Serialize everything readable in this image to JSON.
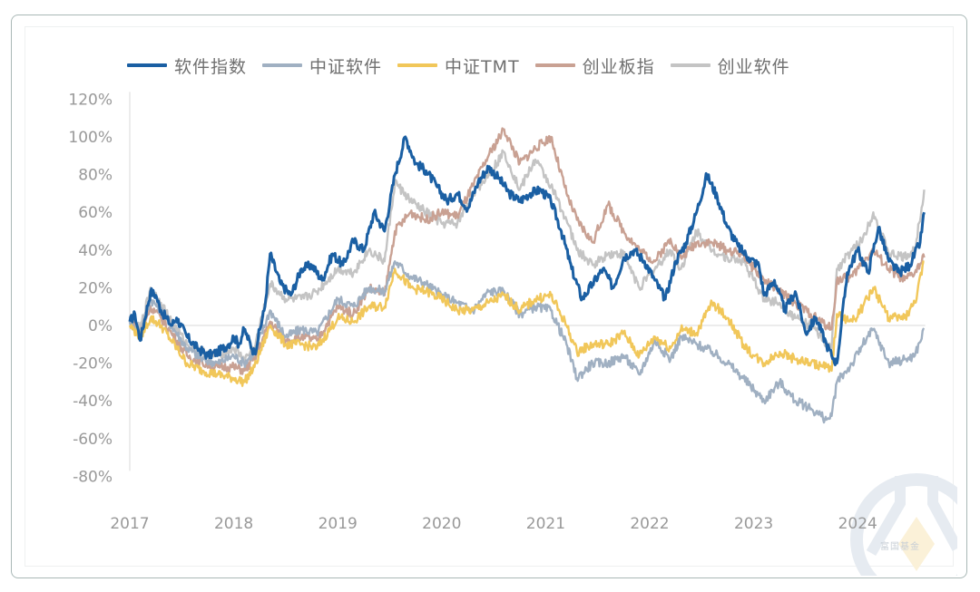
{
  "chart_data": {
    "type": "line",
    "title": "",
    "xlabel": "",
    "ylabel": "",
    "xlim": [
      2017.0,
      2024.65
    ],
    "ylim": [
      -80,
      120
    ],
    "y_ticks": [
      "120%",
      "100%",
      "80%",
      "60%",
      "40%",
      "20%",
      "0%",
      "-20%",
      "-40%",
      "-60%",
      "-80%"
    ],
    "y_tick_values": [
      120,
      100,
      80,
      60,
      40,
      20,
      0,
      -20,
      -40,
      -60,
      -80
    ],
    "x_ticks": [
      "2017",
      "2018",
      "2019",
      "2020",
      "2021",
      "2022",
      "2023",
      "2024"
    ],
    "x_tick_values": [
      2017,
      2018,
      2019,
      2020,
      2021,
      2022,
      2023,
      2024
    ],
    "grid": false,
    "zero_line": true,
    "legend_position": "top",
    "series": [
      {
        "name": "软件指数",
        "color": "#1a5fa3",
        "x": [
          2017.0,
          2017.05,
          2017.1,
          2017.2,
          2017.25,
          2017.3,
          2017.4,
          2017.45,
          2017.55,
          2017.65,
          2017.75,
          2017.85,
          2017.95,
          2018.0,
          2018.05,
          2018.1,
          2018.2,
          2018.3,
          2018.35,
          2018.45,
          2018.55,
          2018.65,
          2018.75,
          2018.85,
          2018.95,
          2019.05,
          2019.15,
          2019.25,
          2019.35,
          2019.45,
          2019.55,
          2019.65,
          2019.75,
          2019.85,
          2019.95,
          2020.05,
          2020.15,
          2020.25,
          2020.35,
          2020.45,
          2020.55,
          2020.65,
          2020.75,
          2020.85,
          2020.95,
          2021.05,
          2021.15,
          2021.25,
          2021.35,
          2021.45,
          2021.55,
          2021.65,
          2021.75,
          2021.85,
          2021.95,
          2022.05,
          2022.15,
          2022.25,
          2022.35,
          2022.45,
          2022.55,
          2022.65,
          2022.75,
          2022.85,
          2022.95,
          2023.05,
          2023.1,
          2023.2,
          2023.3,
          2023.4,
          2023.5,
          2023.6,
          2023.7,
          2023.75,
          2023.8,
          2023.9,
          2024.0,
          2024.1,
          2024.2,
          2024.3,
          2024.4,
          2024.5,
          2024.6,
          2024.64
        ],
        "y": [
          2,
          6,
          -8,
          18,
          16,
          8,
          0,
          4,
          -6,
          -12,
          -16,
          -14,
          -10,
          -6,
          -10,
          -2,
          -15,
          10,
          38,
          22,
          16,
          30,
          32,
          24,
          38,
          32,
          45,
          40,
          60,
          50,
          80,
          100,
          86,
          82,
          74,
          66,
          70,
          62,
          76,
          84,
          78,
          70,
          66,
          70,
          72,
          66,
          50,
          30,
          14,
          22,
          30,
          20,
          36,
          40,
          34,
          24,
          14,
          34,
          44,
          60,
          80,
          68,
          52,
          42,
          36,
          32,
          16,
          24,
          8,
          18,
          -4,
          4,
          -10,
          -16,
          -20,
          28,
          40,
          28,
          52,
          34,
          28,
          32,
          44,
          60
        ]
      },
      {
        "name": "中证软件",
        "color": "#a0b0c2",
        "x": [
          2017.0,
          2017.1,
          2017.2,
          2017.3,
          2017.4,
          2017.55,
          2017.7,
          2017.85,
          2018.0,
          2018.1,
          2018.2,
          2018.35,
          2018.5,
          2018.65,
          2018.8,
          2019.0,
          2019.15,
          2019.3,
          2019.45,
          2019.55,
          2019.7,
          2019.85,
          2020.0,
          2020.15,
          2020.3,
          2020.45,
          2020.6,
          2020.75,
          2020.9,
          2021.05,
          2021.2,
          2021.3,
          2021.45,
          2021.6,
          2021.75,
          2021.9,
          2022.05,
          2022.2,
          2022.3,
          2022.45,
          2022.6,
          2022.75,
          2022.9,
          2023.0,
          2023.1,
          2023.25,
          2023.4,
          2023.55,
          2023.7,
          2023.75,
          2023.8,
          2023.95,
          2024.05,
          2024.15,
          2024.3,
          2024.45,
          2024.55,
          2024.64
        ],
        "y": [
          2,
          -4,
          14,
          8,
          0,
          -12,
          -18,
          -20,
          -16,
          -20,
          -14,
          8,
          -6,
          -2,
          -4,
          14,
          10,
          20,
          18,
          34,
          26,
          22,
          16,
          12,
          8,
          18,
          18,
          6,
          10,
          8,
          -10,
          -28,
          -20,
          -20,
          -16,
          -26,
          -8,
          -18,
          -6,
          -10,
          -14,
          -20,
          -28,
          -34,
          -40,
          -30,
          -40,
          -44,
          -50,
          -48,
          -30,
          -20,
          -10,
          -2,
          -20,
          -18,
          -16,
          -2
        ]
      },
      {
        "name": "中证TMT",
        "color": "#f1c75a",
        "x": [
          2017.0,
          2017.1,
          2017.2,
          2017.3,
          2017.4,
          2017.55,
          2017.7,
          2017.85,
          2018.0,
          2018.1,
          2018.2,
          2018.35,
          2018.5,
          2018.65,
          2018.8,
          2019.0,
          2019.15,
          2019.3,
          2019.45,
          2019.55,
          2019.7,
          2019.85,
          2020.0,
          2020.15,
          2020.3,
          2020.45,
          2020.6,
          2020.75,
          2020.9,
          2021.05,
          2021.2,
          2021.3,
          2021.45,
          2021.6,
          2021.75,
          2021.9,
          2022.05,
          2022.2,
          2022.3,
          2022.45,
          2022.6,
          2022.75,
          2022.9,
          2023.0,
          2023.1,
          2023.25,
          2023.4,
          2023.55,
          2023.7,
          2023.75,
          2023.8,
          2023.95,
          2024.05,
          2024.15,
          2024.3,
          2024.45,
          2024.55,
          2024.64
        ],
        "y": [
          0,
          -6,
          4,
          0,
          -8,
          -20,
          -24,
          -26,
          -28,
          -30,
          -22,
          0,
          -10,
          -10,
          -12,
          4,
          2,
          10,
          10,
          30,
          20,
          18,
          14,
          8,
          8,
          12,
          16,
          8,
          14,
          16,
          0,
          -14,
          -10,
          -10,
          -4,
          -16,
          -6,
          -12,
          -2,
          -4,
          12,
          4,
          -10,
          -16,
          -20,
          -14,
          -18,
          -20,
          -22,
          -24,
          6,
          2,
          10,
          20,
          4,
          4,
          12,
          34
        ]
      },
      {
        "name": "创业板指",
        "color": "#c9a193",
        "x": [
          2017.0,
          2017.1,
          2017.2,
          2017.3,
          2017.4,
          2017.55,
          2017.7,
          2017.85,
          2018.0,
          2018.1,
          2018.2,
          2018.35,
          2018.5,
          2018.65,
          2018.8,
          2019.0,
          2019.15,
          2019.3,
          2019.45,
          2019.55,
          2019.7,
          2019.85,
          2020.0,
          2020.15,
          2020.3,
          2020.45,
          2020.6,
          2020.75,
          2020.9,
          2021.05,
          2021.2,
          2021.3,
          2021.45,
          2021.6,
          2021.75,
          2021.9,
          2022.05,
          2022.2,
          2022.3,
          2022.45,
          2022.6,
          2022.75,
          2022.9,
          2023.0,
          2023.1,
          2023.25,
          2023.4,
          2023.55,
          2023.7,
          2023.75,
          2023.8,
          2023.95,
          2024.05,
          2024.15,
          2024.3,
          2024.45,
          2024.55,
          2024.64
        ],
        "y": [
          2,
          -4,
          10,
          4,
          -4,
          -16,
          -20,
          -22,
          -22,
          -24,
          -18,
          2,
          -8,
          -6,
          -8,
          10,
          6,
          20,
          16,
          50,
          60,
          56,
          60,
          58,
          74,
          90,
          104,
          86,
          94,
          100,
          70,
          56,
          44,
          64,
          50,
          40,
          34,
          46,
          36,
          44,
          44,
          40,
          38,
          30,
          24,
          18,
          12,
          6,
          0,
          -2,
          24,
          26,
          34,
          40,
          30,
          24,
          28,
          36
        ]
      },
      {
        "name": "创业软件",
        "color": "#c4c4c4",
        "x": [
          2017.0,
          2017.1,
          2017.2,
          2017.3,
          2017.4,
          2017.55,
          2017.7,
          2017.85,
          2018.0,
          2018.1,
          2018.2,
          2018.35,
          2018.5,
          2018.65,
          2018.8,
          2019.0,
          2019.15,
          2019.3,
          2019.45,
          2019.55,
          2019.7,
          2019.85,
          2020.0,
          2020.15,
          2020.3,
          2020.45,
          2020.6,
          2020.75,
          2020.9,
          2021.05,
          2021.2,
          2021.3,
          2021.45,
          2021.6,
          2021.75,
          2021.9,
          2022.05,
          2022.2,
          2022.3,
          2022.45,
          2022.6,
          2022.75,
          2022.9,
          2023.0,
          2023.1,
          2023.25,
          2023.4,
          2023.55,
          2023.7,
          2023.75,
          2023.8,
          2023.95,
          2024.05,
          2024.15,
          2024.3,
          2024.45,
          2024.55,
          2024.64
        ],
        "y": [
          4,
          -2,
          20,
          12,
          2,
          -10,
          -14,
          -16,
          -12,
          -18,
          -12,
          22,
          14,
          14,
          18,
          30,
          28,
          40,
          34,
          76,
          66,
          60,
          54,
          54,
          70,
          80,
          92,
          72,
          88,
          74,
          56,
          40,
          32,
          38,
          38,
          20,
          30,
          40,
          30,
          50,
          40,
          36,
          34,
          24,
          14,
          12,
          4,
          0,
          -10,
          -12,
          30,
          40,
          46,
          60,
          38,
          36,
          40,
          72
        ]
      }
    ]
  },
  "watermark": {
    "text": "富国基金"
  }
}
